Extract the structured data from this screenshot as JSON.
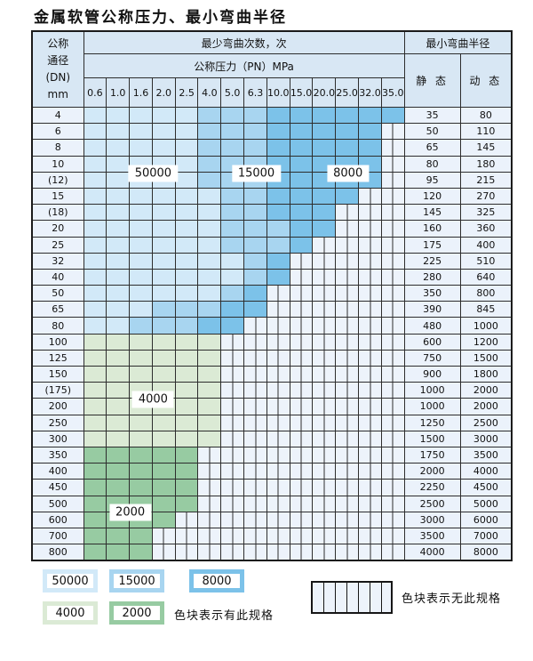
{
  "title": "金属软管公称压力、最小弯曲半径",
  "table": {
    "corner_lines": [
      "公称",
      "通径",
      "(DN)",
      "mm"
    ],
    "top_header": "最少弯曲次数，次",
    "radius_header": "最小弯曲半径",
    "pressure_header": "公称压力（PN）MPa",
    "static_label": "静 态",
    "dynamic_label": "动 态",
    "pressure_columns": [
      "0.6",
      "1.0",
      "1.6",
      "2.0",
      "2.5",
      "4.0",
      "5.0",
      "6.3",
      "10.0",
      "15.0",
      "20.0",
      "25.0",
      "32.0",
      "35.0"
    ],
    "rows": [
      {
        "dn": "4",
        "static": "35",
        "dynamic": "80",
        "spec": {
          "s50000": [
            1,
            5
          ],
          "s15000": [
            6,
            8
          ],
          "s8000": [
            9,
            14
          ]
        }
      },
      {
        "dn": "6",
        "static": "50",
        "dynamic": "110",
        "spec": {
          "s50000": [
            1,
            5
          ],
          "s15000": [
            6,
            8
          ],
          "s8000": [
            9,
            13
          ]
        }
      },
      {
        "dn": "8",
        "static": "65",
        "dynamic": "145",
        "spec": {
          "s50000": [
            1,
            5
          ],
          "s15000": [
            6,
            8
          ],
          "s8000": [
            9,
            13
          ]
        }
      },
      {
        "dn": "10",
        "static": "80",
        "dynamic": "180",
        "spec": {
          "s50000": [
            1,
            5
          ],
          "s15000": [
            6,
            8
          ],
          "s8000": [
            9,
            13
          ]
        }
      },
      {
        "dn": "(12)",
        "static": "95",
        "dynamic": "215",
        "spec": {
          "s50000": [
            1,
            5
          ],
          "s15000": [
            6,
            8
          ],
          "s8000": [
            9,
            13
          ]
        }
      },
      {
        "dn": "15",
        "static": "120",
        "dynamic": "270",
        "spec": {
          "s50000": [
            1,
            6
          ],
          "s15000": [
            7,
            8
          ],
          "s8000": [
            9,
            12
          ]
        }
      },
      {
        "dn": "(18)",
        "static": "145",
        "dynamic": "325",
        "spec": {
          "s50000": [
            1,
            6
          ],
          "s15000": [
            7,
            8
          ],
          "s8000": [
            9,
            11
          ]
        }
      },
      {
        "dn": "20",
        "static": "160",
        "dynamic": "360",
        "spec": {
          "s50000": [
            1,
            6
          ],
          "s15000": [
            7,
            9
          ],
          "s8000": [
            10,
            11
          ]
        }
      },
      {
        "dn": "25",
        "static": "175",
        "dynamic": "400",
        "spec": {
          "s50000": [
            1,
            6
          ],
          "s15000": [
            7,
            9
          ],
          "s8000": [
            10,
            10
          ]
        }
      },
      {
        "dn": "32",
        "static": "225",
        "dynamic": "510",
        "spec": {
          "s50000": [
            1,
            7
          ],
          "s15000": [
            8,
            8
          ],
          "s8000": [
            9,
            9
          ]
        }
      },
      {
        "dn": "40",
        "static": "280",
        "dynamic": "640",
        "spec": {
          "s50000": [
            1,
            7
          ],
          "s15000": [
            8,
            8
          ],
          "s8000": [
            9,
            9
          ]
        }
      },
      {
        "dn": "50",
        "static": "350",
        "dynamic": "800",
        "spec": {
          "s50000": [
            1,
            6
          ],
          "s15000": [
            7,
            7
          ],
          "s8000": [
            8,
            8
          ]
        }
      },
      {
        "dn": "65",
        "static": "390",
        "dynamic": "845",
        "spec": {
          "s50000": [
            1,
            3
          ],
          "s15000": [
            4,
            6
          ],
          "s8000": [
            7,
            8
          ]
        }
      },
      {
        "dn": "80",
        "static": "480",
        "dynamic": "1000",
        "spec": {
          "s50000": [
            1,
            2
          ],
          "s15000": [
            3,
            5
          ],
          "s8000": [
            6,
            7
          ]
        }
      },
      {
        "dn": "100",
        "static": "600",
        "dynamic": "1200",
        "spec": {
          "s4000": [
            1,
            6
          ]
        }
      },
      {
        "dn": "125",
        "static": "750",
        "dynamic": "1500",
        "spec": {
          "s4000": [
            1,
            6
          ]
        }
      },
      {
        "dn": "150",
        "static": "900",
        "dynamic": "1800",
        "spec": {
          "s4000": [
            1,
            6
          ]
        }
      },
      {
        "dn": "(175)",
        "static": "1000",
        "dynamic": "2000",
        "spec": {
          "s4000": [
            1,
            6
          ]
        }
      },
      {
        "dn": "200",
        "static": "1000",
        "dynamic": "2000",
        "spec": {
          "s4000": [
            1,
            6
          ]
        }
      },
      {
        "dn": "250",
        "static": "1250",
        "dynamic": "2500",
        "spec": {
          "s4000": [
            1,
            6
          ]
        }
      },
      {
        "dn": "300",
        "static": "1500",
        "dynamic": "3000",
        "spec": {
          "s4000": [
            1,
            6
          ]
        }
      },
      {
        "dn": "350",
        "static": "1750",
        "dynamic": "3500",
        "spec": {
          "s2000": [
            1,
            5
          ]
        }
      },
      {
        "dn": "400",
        "static": "2000",
        "dynamic": "4000",
        "spec": {
          "s2000": [
            1,
            5
          ]
        }
      },
      {
        "dn": "450",
        "static": "2250",
        "dynamic": "4500",
        "spec": {
          "s2000": [
            1,
            5
          ]
        }
      },
      {
        "dn": "500",
        "static": "2500",
        "dynamic": "5000",
        "spec": {
          "s2000": [
            1,
            5
          ]
        }
      },
      {
        "dn": "600",
        "static": "3000",
        "dynamic": "6000",
        "spec": {
          "s2000": [
            1,
            4
          ]
        }
      },
      {
        "dn": "700",
        "static": "3500",
        "dynamic": "7000",
        "spec": {
          "s2000": [
            1,
            3
          ]
        }
      },
      {
        "dn": "800",
        "static": "4000",
        "dynamic": "8000",
        "spec": {
          "s2000": [
            1,
            3
          ]
        }
      }
    ]
  },
  "overlays": [
    {
      "text": "50000",
      "row_start": 4,
      "row_end": 5,
      "col_start": 3,
      "col_end": 4
    },
    {
      "text": "15000",
      "row_start": 4,
      "row_end": 5,
      "col_start": 7,
      "col_end": 9
    },
    {
      "text": "8000",
      "row_start": 4,
      "row_end": 5,
      "col_start": 11,
      "col_end": 13
    },
    {
      "text": "4000",
      "row_start": 18,
      "row_end": 19,
      "col_start": 3,
      "col_end": 4
    },
    {
      "text": "2000",
      "row_start": 25,
      "row_end": 26,
      "col_start": 2,
      "col_end": 3
    }
  ],
  "legend": {
    "has_spec_items": [
      {
        "value": "50000",
        "color_key": "c50000"
      },
      {
        "value": "15000",
        "color_key": "c15000"
      },
      {
        "value": "8000",
        "color_key": "c8000"
      },
      {
        "value": "4000",
        "color_key": "c4000"
      },
      {
        "value": "2000",
        "color_key": "c2000"
      }
    ],
    "has_spec_label": "色块表示有此规格",
    "no_spec_label": "色块表示无此规格"
  },
  "colors": {
    "c50000": "#d2e9f8",
    "c15000": "#a8d5f0",
    "c8000": "#7cc2e9",
    "c4000": "#dbead5",
    "c2000": "#97cba2",
    "nospec": "#edf3fb",
    "hdrbg": "#d8e7f4",
    "rowhdr": "#ebf2fb"
  }
}
